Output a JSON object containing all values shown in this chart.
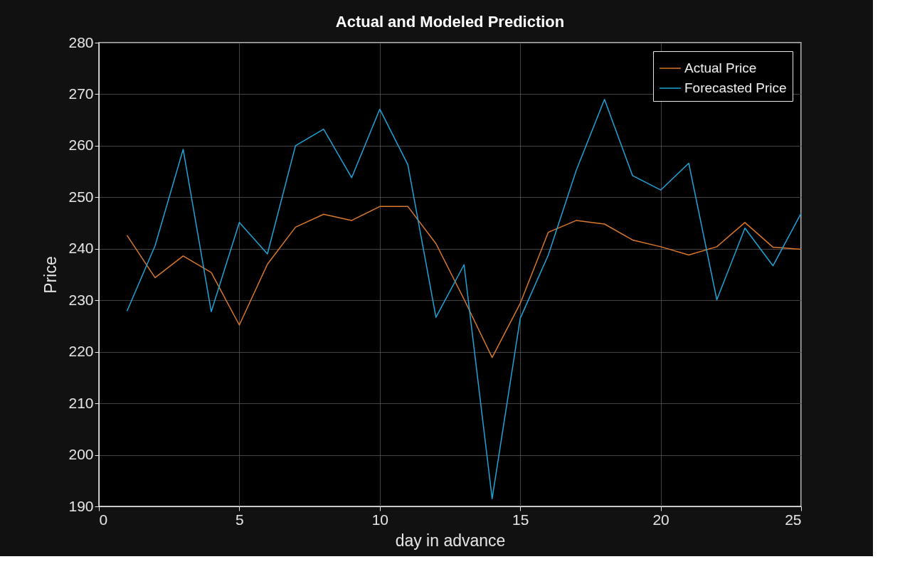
{
  "chart_data": {
    "type": "line",
    "title": "Actual and Modeled Prediction",
    "xlabel": "day in advance",
    "ylabel": "Price",
    "x": [
      1,
      2,
      3,
      4,
      5,
      6,
      7,
      8,
      9,
      10,
      11,
      12,
      13,
      14,
      15,
      16,
      17,
      18,
      19,
      20,
      21,
      22,
      23,
      24,
      25
    ],
    "series": [
      {
        "name": "Actual Price",
        "color": "#d9772b",
        "values": [
          242.6,
          234.4,
          238.6,
          235.4,
          225.2,
          237.0,
          244.2,
          246.7,
          245.5,
          248.2,
          248.2,
          241.0,
          230.2,
          218.9,
          229.4,
          243.2,
          245.5,
          244.8,
          241.7,
          240.4,
          238.8,
          240.4,
          245.1,
          240.3,
          239.9
        ]
      },
      {
        "name": "Forecasted Price",
        "color": "#1ea3d8",
        "values": [
          227.9,
          240.6,
          259.3,
          227.8,
          245.1,
          239.0,
          260.0,
          263.2,
          253.8,
          267.1,
          256.3,
          226.7,
          236.9,
          191.5,
          226.5,
          238.8,
          255.3,
          269.0,
          254.2,
          251.4,
          256.6,
          230.1,
          244.0,
          236.7,
          246.9
        ]
      }
    ],
    "xlim": [
      0,
      25
    ],
    "xticks": [
      0,
      5,
      10,
      15,
      20,
      25
    ],
    "ylim": [
      190,
      280
    ],
    "yticks": [
      190,
      200,
      210,
      220,
      230,
      240,
      250,
      260,
      270,
      280
    ],
    "grid": true,
    "legend": "top right",
    "marker": "none",
    "line_style": "solid"
  }
}
